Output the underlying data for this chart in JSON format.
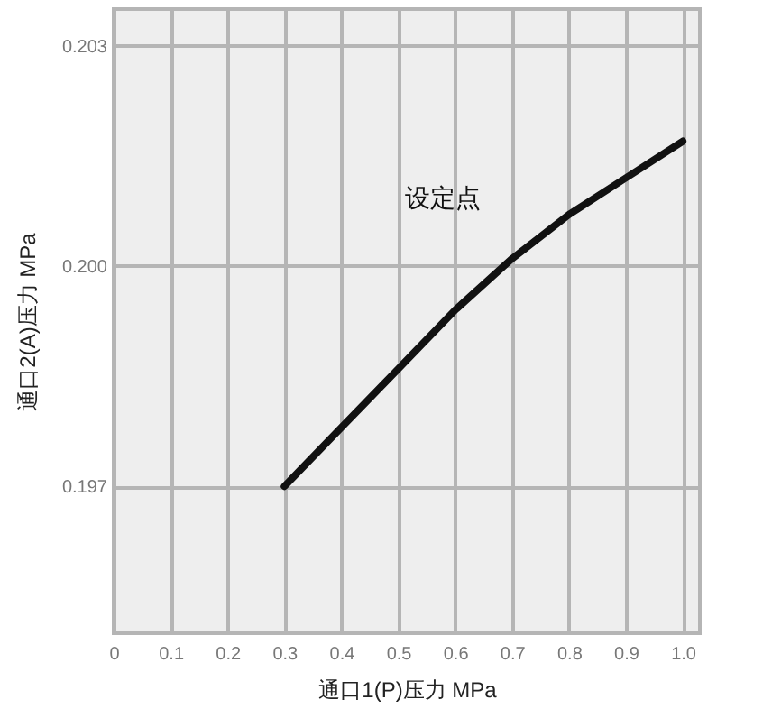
{
  "chart_data": {
    "type": "line",
    "xlabel": "通口1(P)压力 MPa",
    "ylabel": "通口2(A)压力 MPa",
    "x": [
      0.3,
      0.4,
      0.5,
      0.6,
      0.7,
      0.8,
      0.9,
      1.0
    ],
    "series": [
      {
        "color": "#111111",
        "values": [
          0.197,
          0.1978,
          0.1986,
          0.1994,
          0.2001,
          0.2007,
          0.2012,
          0.2017
        ]
      }
    ],
    "xlim": [
      0,
      1.03
    ],
    "xticks": [
      0,
      0.1,
      0.2,
      0.3,
      0.4,
      0.5,
      0.6,
      0.7,
      0.8,
      0.9,
      {
        "value": 1.0,
        "label": "1.0"
      }
    ],
    "ylim": [
      0.195,
      0.2035
    ],
    "yticks": [
      0.197,
      {
        "value": 0.2,
        "label": "0.200"
      },
      0.203
    ],
    "grid": true,
    "marker": "none",
    "line_style": "solid",
    "annotations": [
      {
        "text": "设定点",
        "x": 0.69,
        "y": 0.2
      }
    ]
  }
}
